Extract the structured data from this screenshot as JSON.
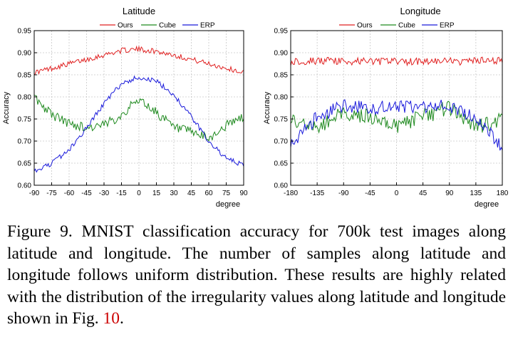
{
  "chart_data": [
    {
      "type": "line",
      "title": "Latitude",
      "xlabel": "degree",
      "ylabel": "Accuracy",
      "xlim": [
        -90,
        90
      ],
      "ylim": [
        0.6,
        0.95
      ],
      "xticks": [
        -90,
        -75,
        -60,
        -45,
        -30,
        -15,
        0,
        15,
        30,
        45,
        60,
        75,
        90
      ],
      "xtick_labels": [
        "-90",
        "-75",
        "-60",
        "-45",
        "-30",
        "-15",
        "0",
        "15",
        "30",
        "45",
        "60",
        "75",
        "90"
      ],
      "yticks": [
        0.6,
        0.65,
        0.7,
        0.75,
        0.8,
        0.85,
        0.9,
        0.95
      ],
      "ytick_labels": [
        "0.60",
        "0.65",
        "0.70",
        "0.75",
        "0.80",
        "0.85",
        "0.90",
        "0.95"
      ],
      "grid": true,
      "legend": "top",
      "x": [
        -90,
        -75,
        -60,
        -45,
        -30,
        -15,
        0,
        15,
        30,
        45,
        60,
        75,
        90
      ],
      "series": [
        {
          "name": "Ours",
          "color": "#e02020",
          "values": [
            0.855,
            0.865,
            0.875,
            0.885,
            0.895,
            0.905,
            0.908,
            0.903,
            0.895,
            0.885,
            0.875,
            0.865,
            0.855
          ]
        },
        {
          "name": "Cube",
          "color": "#1f8a1f",
          "values": [
            0.8,
            0.76,
            0.74,
            0.73,
            0.735,
            0.76,
            0.795,
            0.765,
            0.73,
            0.72,
            0.705,
            0.735,
            0.755
          ]
        },
        {
          "name": "ERP",
          "color": "#1a1adb",
          "values": [
            0.63,
            0.65,
            0.68,
            0.73,
            0.785,
            0.83,
            0.845,
            0.835,
            0.805,
            0.755,
            0.7,
            0.66,
            0.645
          ]
        }
      ]
    },
    {
      "type": "line",
      "title": "Longitude",
      "xlabel": "degree",
      "ylabel": "Accuracy",
      "xlim": [
        -180,
        180
      ],
      "ylim": [
        0.6,
        0.95
      ],
      "xticks": [
        -180,
        -135,
        -90,
        -45,
        0,
        45,
        90,
        135,
        180
      ],
      "xtick_labels": [
        "-180",
        "-135",
        "-90",
        "-45",
        "0",
        "45",
        "90",
        "135",
        "180"
      ],
      "yticks": [
        0.6,
        0.65,
        0.7,
        0.75,
        0.8,
        0.85,
        0.9,
        0.95
      ],
      "ytick_labels": [
        "0.60",
        "0.65",
        "0.70",
        "0.75",
        "0.80",
        "0.85",
        "0.90",
        "0.95"
      ],
      "grid": true,
      "legend": "top",
      "x": [
        -180,
        -135,
        -90,
        -45,
        0,
        45,
        90,
        135,
        180
      ],
      "series": [
        {
          "name": "Ours",
          "color": "#e02020",
          "values": [
            0.88,
            0.882,
            0.88,
            0.881,
            0.88,
            0.881,
            0.88,
            0.881,
            0.882
          ]
        },
        {
          "name": "Cube",
          "color": "#1f8a1f",
          "values": [
            0.745,
            0.73,
            0.765,
            0.755,
            0.735,
            0.755,
            0.775,
            0.73,
            0.75
          ]
        },
        {
          "name": "ERP",
          "color": "#1a1adb",
          "values": [
            0.69,
            0.755,
            0.78,
            0.775,
            0.778,
            0.775,
            0.78,
            0.755,
            0.685
          ]
        }
      ]
    }
  ],
  "caption": {
    "text": "Figure 9. MNIST classification accuracy for 700k test images along latitude and longitude. The number of samples along latitude and longitude follows uniform distribution. These results are highly related with the distribution of the irregularity values along latitude and longitude shown in Fig. ",
    "ref": "10",
    "tail": "."
  }
}
